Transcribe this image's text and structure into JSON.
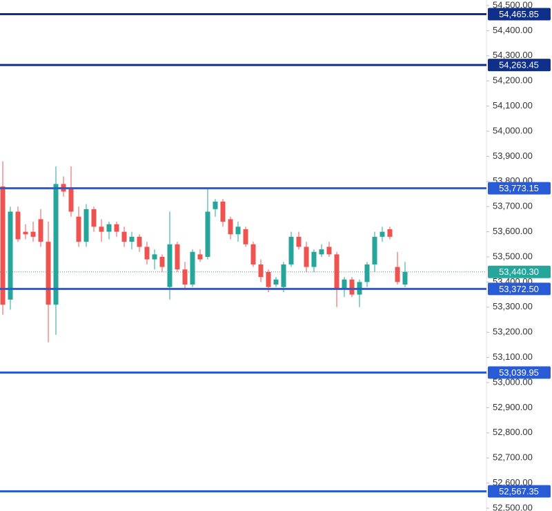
{
  "chart_data": {
    "type": "candlestick",
    "open": [
      53780,
      53330,
      53680,
      53600,
      53600,
      53650,
      53560,
      53310,
      53790,
      53770,
      53660,
      53560,
      53690,
      53620,
      53600,
      53630,
      53600,
      53560,
      53580,
      53540,
      53490,
      53500,
      53380,
      53550,
      53450,
      53390,
      53510,
      53500,
      53690,
      53720,
      53650,
      53590,
      53610,
      53550,
      53470,
      53440,
      53390,
      53380,
      53470,
      53580,
      53540,
      53460,
      53510,
      53540,
      53510,
      53370,
      53410,
      53350,
      53400,
      53470,
      53580,
      53610,
      53460,
      53390
    ],
    "high": [
      53880,
      53700,
      53700,
      53630,
      53640,
      53690,
      53640,
      53860,
      53820,
      53860,
      53700,
      53710,
      53700,
      53650,
      53640,
      53640,
      53620,
      53600,
      53590,
      53560,
      53530,
      53510,
      53680,
      53560,
      53480,
      53530,
      53530,
      53770,
      53730,
      53730,
      53660,
      53640,
      53620,
      53560,
      53490,
      53450,
      53420,
      53480,
      53600,
      53600,
      53560,
      53530,
      53550,
      53560,
      53520,
      53420,
      53420,
      53410,
      53480,
      53600,
      53620,
      53620,
      53520,
      53480
    ],
    "low": [
      53270,
      53290,
      53560,
      53570,
      53560,
      53540,
      53160,
      53190,
      53740,
      53660,
      53540,
      53540,
      53600,
      53560,
      53570,
      53580,
      53540,
      53530,
      53520,
      53470,
      53450,
      53440,
      53330,
      53440,
      53370,
      53380,
      53480,
      53490,
      53660,
      53620,
      53570,
      53560,
      53540,
      53460,
      53400,
      53360,
      53380,
      53360,
      53460,
      53530,
      53440,
      53440,
      53500,
      53500,
      53300,
      53340,
      53340,
      53300,
      53380,
      53440,
      53560,
      53570,
      53390,
      53380
    ],
    "close": [
      53310,
      53680,
      53570,
      53590,
      53580,
      53560,
      53310,
      53790,
      53760,
      53680,
      53560,
      53690,
      53620,
      53600,
      53630,
      53600,
      53560,
      53580,
      53540,
      53490,
      53510,
      53460,
      53550,
      53450,
      53390,
      53520,
      53490,
      53680,
      53720,
      53640,
      53590,
      53620,
      53550,
      53470,
      53420,
      53380,
      53410,
      53470,
      53580,
      53540,
      53460,
      53520,
      53530,
      53510,
      53370,
      53410,
      53350,
      53400,
      53470,
      53580,
      53600,
      53580,
      53400,
      53440
    ],
    "up_color": "#26a69a",
    "down_color": "#ef5350",
    "ylim": [
      52489,
      54522
    ],
    "yticks": [
      {
        "value": 54500,
        "label": "54,500.00"
      },
      {
        "value": 54400,
        "label": "54,400.00"
      },
      {
        "value": 54300,
        "label": "54,300.00"
      },
      {
        "value": 54200,
        "label": "54,200.00"
      },
      {
        "value": 54100,
        "label": "54,100.00"
      },
      {
        "value": 54000,
        "label": "54,000.00"
      },
      {
        "value": 53900,
        "label": "53,900.00"
      },
      {
        "value": 53800,
        "label": "53,800.00"
      },
      {
        "value": 53700,
        "label": "53,700.00"
      },
      {
        "value": 53600,
        "label": "53,600.00"
      },
      {
        "value": 53500,
        "label": "53,500.00"
      },
      {
        "value": 53400,
        "label": "53,400.00"
      },
      {
        "value": 53300,
        "label": "53,300.00"
      },
      {
        "value": 53200,
        "label": "53,200.00"
      },
      {
        "value": 53100,
        "label": "53,100.00"
      },
      {
        "value": 53000,
        "label": "53,000.00"
      },
      {
        "value": 52900,
        "label": "52,900.00"
      },
      {
        "value": 52800,
        "label": "52,800.00"
      },
      {
        "value": 52700,
        "label": "52,700.00"
      },
      {
        "value": 52600,
        "label": "52,600.00"
      },
      {
        "value": 52500,
        "label": "52,500.00"
      }
    ],
    "levels": [
      {
        "value": 54465.85,
        "label": "54,465.85",
        "color": "#0f2f8a"
      },
      {
        "value": 54263.45,
        "label": "54,263.45",
        "color": "#0f2f8a"
      },
      {
        "value": 53773.15,
        "label": "53,773.15",
        "color": "#2a5bd7"
      },
      {
        "value": 53372.5,
        "label": "53,372.50",
        "color": "#2a5bd7"
      },
      {
        "value": 53039.95,
        "label": "53,039.95",
        "color": "#2a5bd7"
      },
      {
        "value": 52567.35,
        "label": "52,567.35",
        "color": "#2a5bd7"
      }
    ],
    "last_price": {
      "value": 53440.3,
      "label": "53,440.30",
      "color": "#26a69a"
    }
  }
}
